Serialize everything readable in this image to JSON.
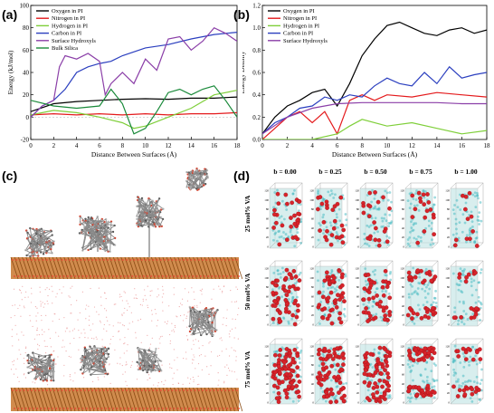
{
  "panels": {
    "a": "(a)",
    "b": "(b)",
    "c": "(c)",
    "d": "(d)"
  },
  "chart_data": [
    {
      "type": "line",
      "panel": "a",
      "xlabel": "Distance Between Surfaces (Å)",
      "ylabel": "Energy (kJ/mol)",
      "xlim": [
        0,
        18
      ],
      "ylim": [
        -20,
        100
      ],
      "xticks": [
        0,
        2,
        4,
        6,
        8,
        10,
        12,
        14,
        16,
        18
      ],
      "yticks": [
        -20,
        0,
        20,
        40,
        60,
        80,
        100
      ],
      "legend_position": "top-left",
      "series": [
        {
          "name": "Oxygen in PI",
          "color": "#000000",
          "x": [
            0,
            2,
            4,
            6,
            8,
            10,
            12,
            14,
            16,
            18
          ],
          "y": [
            5,
            12,
            14,
            15,
            16,
            16.5,
            16,
            17,
            17,
            18
          ]
        },
        {
          "name": "Nitrogen in PI",
          "color": "#e41a1c",
          "x": [
            0,
            2,
            4,
            6,
            8,
            10,
            12,
            14,
            16,
            18
          ],
          "y": [
            2,
            3,
            2,
            3,
            2,
            3,
            2,
            3,
            3,
            4
          ]
        },
        {
          "name": "Hydrogen in PI",
          "color": "#7fcf3a",
          "x": [
            0,
            2,
            4,
            6,
            8,
            9,
            10,
            12,
            14,
            16,
            18
          ],
          "y": [
            2,
            6,
            4,
            0,
            -5,
            -10,
            -8,
            0,
            8,
            20,
            24
          ]
        },
        {
          "name": "Carbon in PI",
          "color": "#2b3fbf",
          "x": [
            0,
            1,
            2,
            3,
            4,
            5,
            6,
            7,
            8,
            10,
            12,
            14,
            16,
            18
          ],
          "y": [
            0,
            10,
            15,
            25,
            40,
            45,
            48,
            50,
            55,
            62,
            65,
            70,
            74,
            76
          ]
        },
        {
          "name": "Surface Hydroxyls",
          "color": "#8b3fa8",
          "x": [
            0,
            1,
            2,
            2.5,
            3,
            4,
            5,
            6,
            6.5,
            7,
            8,
            9,
            10,
            11,
            12,
            13,
            14,
            15,
            16,
            17,
            18
          ],
          "y": [
            0,
            10,
            15,
            45,
            55,
            52,
            57,
            50,
            20,
            30,
            40,
            30,
            52,
            42,
            70,
            72,
            60,
            68,
            80,
            75,
            68
          ]
        },
        {
          "name": "Bulk Silica",
          "color": "#1a8a3a",
          "x": [
            0,
            2,
            4,
            6,
            7,
            8,
            9,
            10,
            11,
            12,
            13,
            14,
            15,
            16,
            17,
            18
          ],
          "y": [
            15,
            10,
            8,
            10,
            25,
            12,
            -15,
            -10,
            5,
            22,
            25,
            20,
            25,
            28,
            15,
            0
          ]
        }
      ]
    },
    {
      "type": "line",
      "panel": "b",
      "xlabel": "Distance Between Surfaces (Å)",
      "ylabel": "Energy Density",
      "xlim": [
        0,
        18
      ],
      "ylim": [
        0,
        1.2
      ],
      "xticks": [
        0,
        2,
        4,
        6,
        8,
        10,
        12,
        14,
        16,
        18
      ],
      "yticks": [
        0.0,
        0.2,
        0.4,
        0.6,
        0.8,
        1.0,
        1.2
      ],
      "legend_position": "top-left",
      "series": [
        {
          "name": "Oxygen in PI",
          "color": "#000000",
          "x": [
            0,
            1,
            2,
            3,
            4,
            5,
            6,
            7,
            8,
            9,
            10,
            11,
            12,
            13,
            14,
            15,
            16,
            17,
            18
          ],
          "y": [
            0.05,
            0.2,
            0.3,
            0.35,
            0.42,
            0.45,
            0.3,
            0.5,
            0.75,
            0.9,
            1.02,
            1.05,
            1.0,
            0.95,
            0.93,
            0.98,
            1.0,
            0.95,
            0.98
          ]
        },
        {
          "name": "Nitrogen in PI",
          "color": "#e41a1c",
          "x": [
            0,
            1,
            2,
            3,
            4,
            5,
            6,
            7,
            8,
            9,
            10,
            12,
            14,
            16,
            18
          ],
          "y": [
            0.0,
            0.1,
            0.2,
            0.25,
            0.15,
            0.25,
            0.05,
            0.35,
            0.4,
            0.35,
            0.4,
            0.38,
            0.42,
            0.4,
            0.38
          ]
        },
        {
          "name": "Hydrogen in PI",
          "color": "#7fcf3a",
          "x": [
            0,
            2,
            4,
            6,
            7,
            8,
            10,
            12,
            14,
            16,
            18
          ],
          "y": [
            0.0,
            0.0,
            0.0,
            0.05,
            0.12,
            0.18,
            0.12,
            0.15,
            0.1,
            0.05,
            0.08
          ]
        },
        {
          "name": "Carbon in PI",
          "color": "#2b3fbf",
          "x": [
            0,
            1,
            2,
            3,
            4,
            5,
            6,
            7,
            8,
            9,
            10,
            11,
            12,
            13,
            14,
            15,
            16,
            17,
            18
          ],
          "y": [
            0.05,
            0.15,
            0.2,
            0.28,
            0.3,
            0.38,
            0.35,
            0.4,
            0.38,
            0.48,
            0.55,
            0.5,
            0.48,
            0.6,
            0.5,
            0.65,
            0.55,
            0.58,
            0.6
          ]
        },
        {
          "name": "Surface Hydroxyls",
          "color": "#8b3fa8",
          "x": [
            0,
            2,
            4,
            6,
            8,
            10,
            12,
            14,
            16,
            18
          ],
          "y": [
            0.05,
            0.2,
            0.28,
            0.32,
            0.33,
            0.33,
            0.33,
            0.33,
            0.32,
            0.32
          ]
        }
      ]
    }
  ],
  "panel_d": {
    "columns": [
      "b = 0.00",
      "b = 0.25",
      "b = 0.50",
      "b = 0.75",
      "b = 1.00"
    ],
    "rows": [
      "25 mol% VA",
      "50 mol% VA",
      "75 mol% VA"
    ],
    "z_ticks": [
      "120",
      "100",
      "80",
      "60",
      "40",
      "20",
      "0"
    ]
  }
}
